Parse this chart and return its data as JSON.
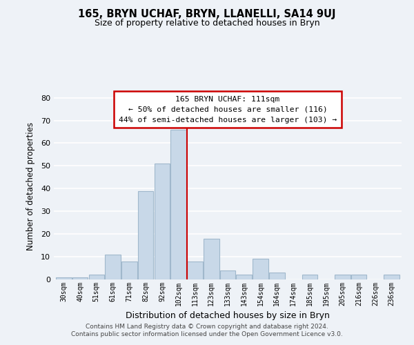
{
  "title": "165, BRYN UCHAF, BRYN, LLANELLI, SA14 9UJ",
  "subtitle": "Size of property relative to detached houses in Bryn",
  "xlabel": "Distribution of detached houses by size in Bryn",
  "ylabel": "Number of detached properties",
  "categories": [
    "30sqm",
    "40sqm",
    "51sqm",
    "61sqm",
    "71sqm",
    "82sqm",
    "92sqm",
    "102sqm",
    "113sqm",
    "123sqm",
    "133sqm",
    "143sqm",
    "154sqm",
    "164sqm",
    "174sqm",
    "185sqm",
    "195sqm",
    "205sqm",
    "216sqm",
    "226sqm",
    "236sqm"
  ],
  "values": [
    1,
    1,
    2,
    11,
    8,
    39,
    51,
    66,
    8,
    18,
    4,
    2,
    9,
    3,
    0,
    2,
    0,
    2,
    2,
    0,
    2
  ],
  "bar_color": "#c8d8e8",
  "bar_edge_color": "#a0b8cc",
  "vline_color": "#cc0000",
  "annotation_title": "165 BRYN UCHAF: 111sqm",
  "annotation_line1": "← 50% of detached houses are smaller (116)",
  "annotation_line2": "44% of semi-detached houses are larger (103) →",
  "annotation_box_color": "#ffffff",
  "annotation_box_edge": "#cc0000",
  "ylim": [
    0,
    82
  ],
  "yticks": [
    0,
    10,
    20,
    30,
    40,
    50,
    60,
    70,
    80
  ],
  "footer_line1": "Contains HM Land Registry data © Crown copyright and database right 2024.",
  "footer_line2": "Contains public sector information licensed under the Open Government Licence v3.0.",
  "bg_color": "#eef2f7",
  "grid_color": "#ffffff"
}
